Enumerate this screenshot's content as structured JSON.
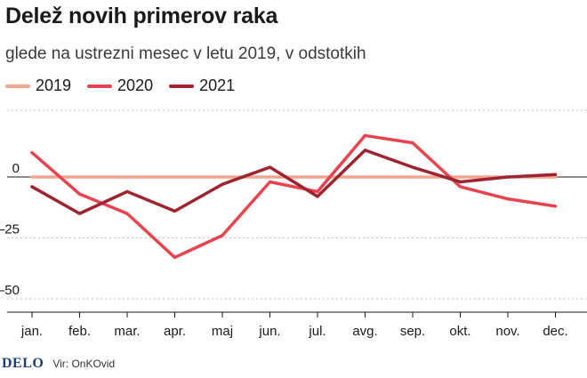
{
  "header": {
    "title": "Delež novih primerov raka",
    "subtitle": "glede na ustrezni mesec v letu 2019, v odstotkih"
  },
  "footer": {
    "logo": "DELO",
    "source": "Vir: OnKOvid"
  },
  "chart_data": {
    "type": "line",
    "categories": [
      "jan.",
      "feb.",
      "mar.",
      "apr.",
      "maj",
      "jun.",
      "jul.",
      "avg.",
      "sep.",
      "okt.",
      "nov.",
      "dec."
    ],
    "series": [
      {
        "name": "2019",
        "color": "#f4a58f",
        "values": [
          0,
          0,
          0,
          0,
          0,
          0,
          0,
          0,
          0,
          0,
          0,
          0
        ]
      },
      {
        "name": "2020",
        "color": "#e8434f",
        "values": [
          10,
          -7,
          -15,
          -33,
          -24,
          -2,
          -6,
          17,
          14,
          -4,
          -9,
          -12
        ]
      },
      {
        "name": "2021",
        "color": "#9e2430",
        "values": [
          -4,
          -15,
          -6,
          -14,
          -3,
          4,
          -8,
          11,
          4,
          -2,
          0,
          1
        ]
      }
    ],
    "yticks": [
      0,
      -25,
      -50
    ],
    "ytick_labels": [
      "0",
      "–25",
      "–50"
    ],
    "ylim": [
      -50,
      27
    ],
    "grid": true,
    "legend": "top-left"
  }
}
